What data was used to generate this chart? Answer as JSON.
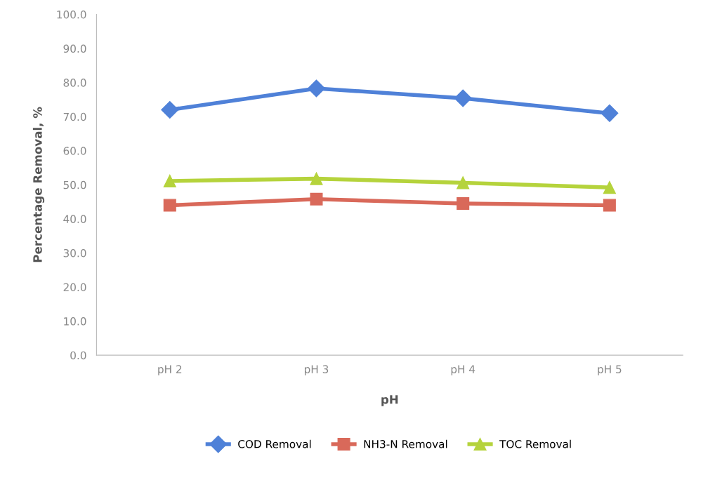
{
  "chart_data": {
    "type": "line",
    "xlabel": "pH",
    "ylabel": "Percentage Removal, %",
    "categories": [
      "pH 2",
      "pH 3",
      "pH 4",
      "pH 5"
    ],
    "series": [
      {
        "name": "COD Removal",
        "color": "#4f81d8",
        "marker": "diamond",
        "values": [
          72.0,
          78.3,
          75.4,
          71.0
        ]
      },
      {
        "name": "NH3-N Removal",
        "color": "#d9695a",
        "marker": "square",
        "values": [
          44.0,
          45.8,
          44.5,
          44.0
        ]
      },
      {
        "name": "TOC Removal",
        "color": "#b5d33c",
        "marker": "triangle",
        "values": [
          51.1,
          51.8,
          50.6,
          49.2
        ]
      }
    ],
    "ylim": [
      0,
      100
    ],
    "yticks": [
      {
        "value": 0,
        "label": "0.0"
      },
      {
        "value": 10,
        "label": "10.0"
      },
      {
        "value": 20,
        "label": "20.0"
      },
      {
        "value": 30,
        "label": "30.0"
      },
      {
        "value": 40,
        "label": "40.0"
      },
      {
        "value": 50,
        "label": "50.0"
      },
      {
        "value": 60,
        "label": "60.0"
      },
      {
        "value": 70,
        "label": "70.0"
      },
      {
        "value": 80,
        "label": "80.0"
      },
      {
        "value": 90,
        "label": "90.0"
      },
      {
        "value": 100,
        "label": "100.0"
      }
    ],
    "grid": false,
    "legend": "bottom"
  }
}
